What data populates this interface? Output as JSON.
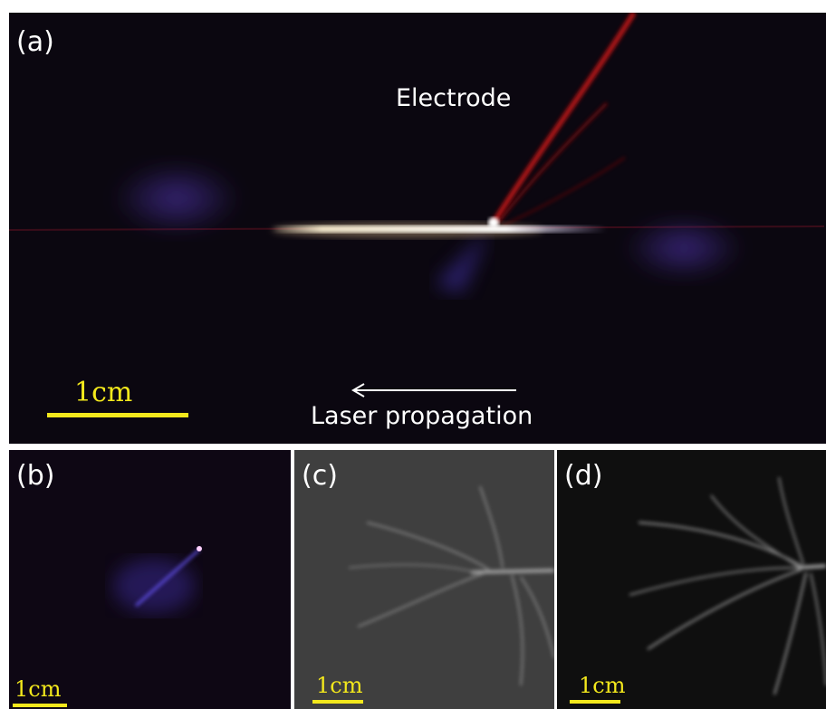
{
  "figure": {
    "panel_a": {
      "label": "(a)",
      "electrode_label": "Electrode",
      "direction_label": "Laser propagation",
      "scale_label": "1cm"
    },
    "panel_b": {
      "label": "(b)",
      "scale_label": "1cm"
    },
    "panel_c": {
      "label": "(c)",
      "scale_label": "1cm"
    },
    "panel_d": {
      "label": "(d)",
      "scale_label": "1cm"
    },
    "colors": {
      "scale_bar": "#f3e81c",
      "electrode_glow": "#c81414",
      "plasma_core": "#fff6d8",
      "discharge_violet": "#5a3cc8"
    }
  }
}
